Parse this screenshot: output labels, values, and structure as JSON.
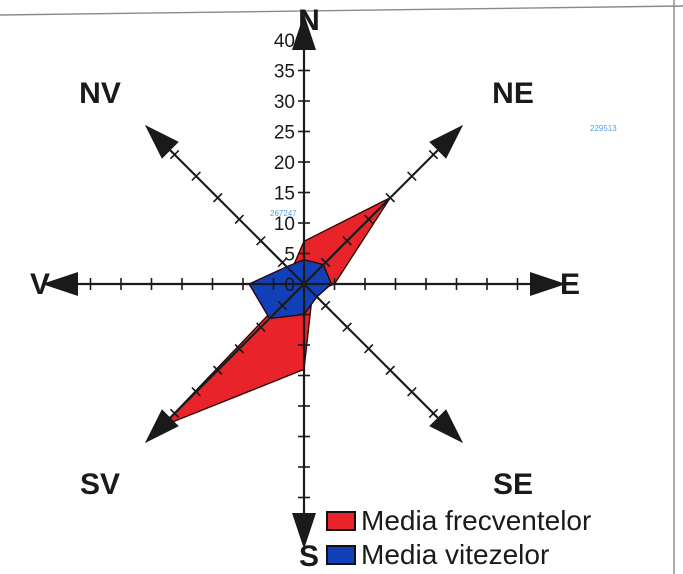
{
  "chart_data": {
    "type": "radar",
    "directions": [
      "N",
      "NE",
      "E",
      "SE",
      "S",
      "SV",
      "V",
      "NV"
    ],
    "radial_ticks": [
      5,
      10,
      15,
      20,
      25,
      30,
      35,
      40
    ],
    "rmax": 40,
    "series": [
      {
        "name": "Media frecventelor",
        "color": "#e8242a",
        "values": [
          7,
          20,
          5,
          2,
          14,
          33,
          1,
          3
        ]
      },
      {
        "name": "Media vitezelor",
        "color": "#1140b8",
        "values": [
          4,
          4.5,
          4.5,
          3,
          5,
          8,
          9,
          4
        ]
      }
    ],
    "legend": "bottom-right"
  },
  "stamps": [
    "267247",
    "229513"
  ]
}
